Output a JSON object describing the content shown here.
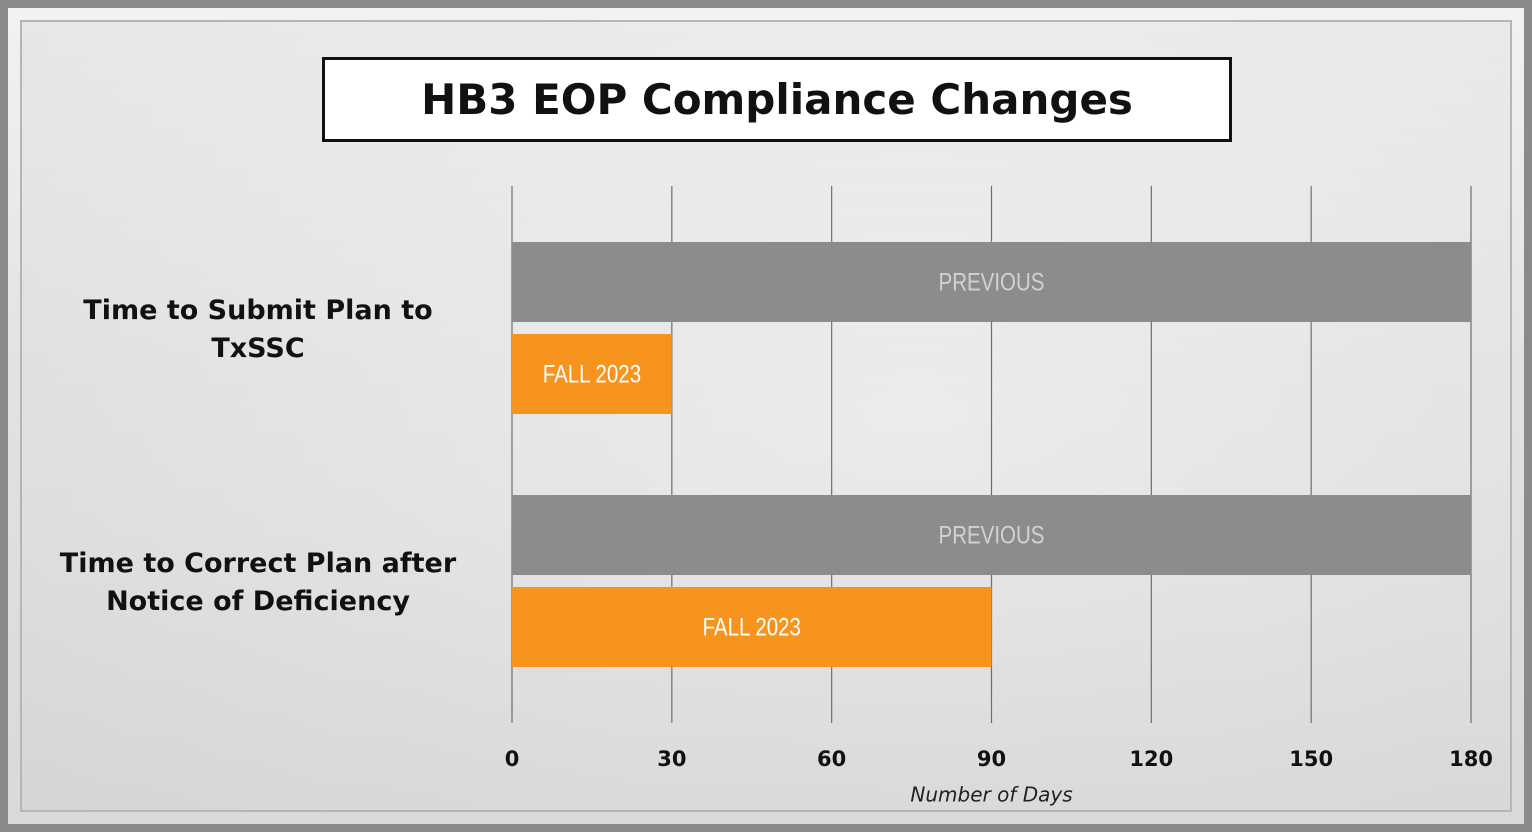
{
  "chart_data": {
    "type": "bar",
    "orientation": "horizontal",
    "title": "HB3 EOP Compliance Changes",
    "categories": [
      "Time to Submit Plan to TxSSC",
      "Time to Correct Plan after Notice of Deficiency"
    ],
    "series": [
      {
        "name": "PREVIOUS",
        "color": "#8c8c8c",
        "label_color": "#d2d2d2",
        "values": [
          180,
          180
        ]
      },
      {
        "name": "FALL 2023",
        "color": "#f7941d",
        "label_color": "#ffffff",
        "values": [
          30,
          90
        ]
      }
    ],
    "xlim": [
      0,
      180
    ],
    "xticks": [
      0,
      30,
      60,
      90,
      120,
      150,
      180
    ],
    "x_label": "Number of Days",
    "grid": true
  }
}
